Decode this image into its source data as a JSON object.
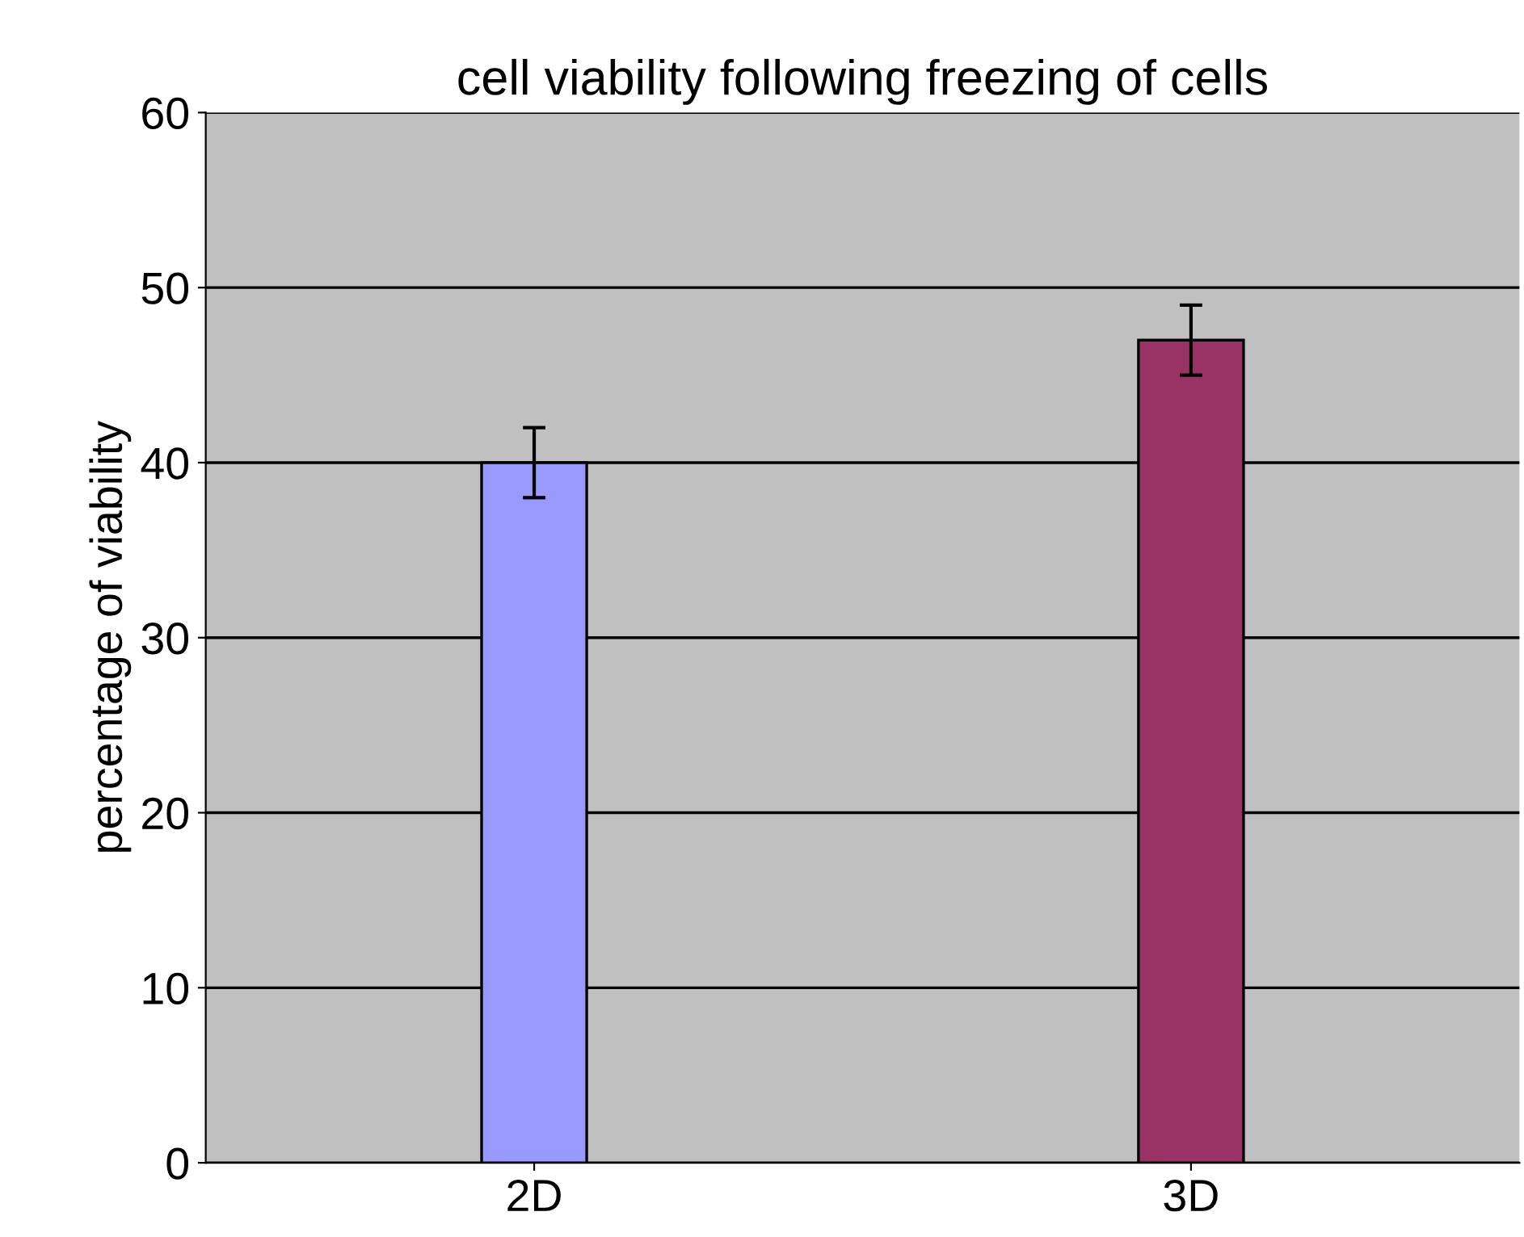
{
  "chart_data": {
    "type": "bar",
    "title": "cell viability following freezing of cells",
    "ylabel": "percentage of viability",
    "categories": [
      "2D",
      "3D"
    ],
    "values": [
      40,
      47
    ],
    "colors": [
      "#9999ff",
      "#993366"
    ],
    "errors": [
      2,
      2
    ],
    "ylim": [
      0,
      60
    ],
    "yticks": [
      0,
      10,
      20,
      30,
      40,
      50,
      60
    ],
    "grid": "y",
    "legend": false
  }
}
